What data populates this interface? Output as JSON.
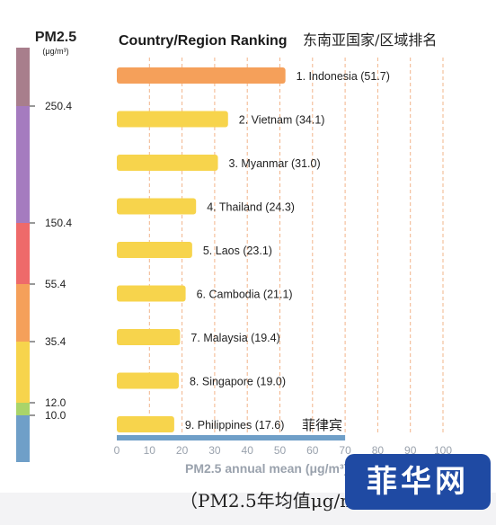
{
  "chart_data": {
    "type": "bar",
    "orientation": "horizontal",
    "title": "Country/Region Ranking",
    "subtitle_cn": "东南亚国家/区域排名",
    "xlabel": "PM2.5 annual mean (μg/m³)",
    "xlim": [
      0,
      100
    ],
    "xticks": [
      "0",
      "10",
      "20",
      "30",
      "40",
      "50",
      "60",
      "70",
      "80",
      "90",
      "100"
    ],
    "grid": "vertical dashed",
    "categories": [
      "1.  Indonesia (51.7)",
      "2.  Vietnam (34.1)",
      "3.  Myanmar (31.0)",
      "4.  Thailand (24.3)",
      "5.  Laos (23.1)",
      "6.  Cambodia (21.1)",
      "7.  Malaysia (19.4)",
      "8.  Singapore (19.0)",
      "9.  Philippines (17.6)"
    ],
    "values": [
      51.7,
      34.1,
      31.0,
      24.3,
      23.1,
      21.1,
      19.4,
      19.0,
      17.6
    ],
    "bar_colors": [
      "#f5a05a",
      "#f7d44c",
      "#f7d44c",
      "#f7d44c",
      "#f7d44c",
      "#f7d44c",
      "#f7d44c",
      "#f7d44c",
      "#f7d44c"
    ],
    "annotation_cn": "菲律宾"
  },
  "legend": {
    "title": "PM2.5",
    "unit": "(μg/m³)",
    "scale_max": 500,
    "bands": [
      {
        "from": 0,
        "to": 10.0,
        "color": "#6f9fc8"
      },
      {
        "from": 10.0,
        "to": 12.0,
        "color": "#a9d46a"
      },
      {
        "from": 12.0,
        "to": 35.4,
        "color": "#f7d44c"
      },
      {
        "from": 35.4,
        "to": 55.4,
        "color": "#f5a05a"
      },
      {
        "from": 55.4,
        "to": 150.4,
        "color": "#ee6a6a"
      },
      {
        "from": 150.4,
        "to": 250.4,
        "color": "#a57bbf"
      },
      {
        "from": 250.4,
        "to": 500,
        "color": "#a87e8c"
      }
    ],
    "ticks": [
      "10.0",
      "12.0",
      "35.4",
      "55.4",
      "150.4",
      "250.4"
    ]
  },
  "caption": "（PM2.5年均值μg/m",
  "watermark": "菲华网"
}
